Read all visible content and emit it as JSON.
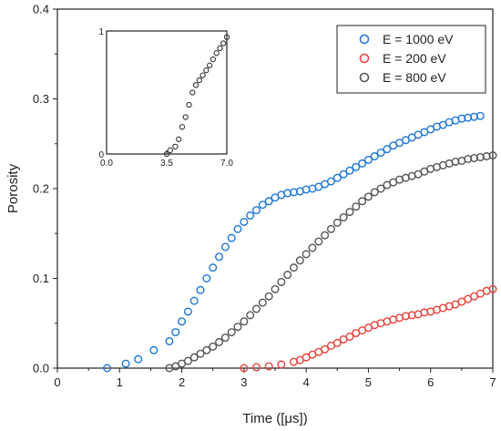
{
  "chart_data": [
    {
      "type": "scatter",
      "xlabel": "Time ([μs])",
      "ylabel": "Porosity",
      "xlim": [
        0,
        7
      ],
      "ylim": [
        0,
        0.4
      ],
      "x_ticks": [
        "0",
        "1",
        "2",
        "3",
        "4",
        "5",
        "6",
        "7"
      ],
      "y_ticks": [
        "0.0",
        "0.1",
        "0.2",
        "0.3",
        "0.4"
      ],
      "grid": false,
      "legend_position": "top-right",
      "series": [
        {
          "name": "E = 1000 eV",
          "color": "#1f77d4",
          "x": [
            0.8,
            1.1,
            1.3,
            1.55,
            1.8,
            1.9,
            2.0,
            2.1,
            2.2,
            2.3,
            2.4,
            2.5,
            2.6,
            2.7,
            2.8,
            2.9,
            3.0,
            3.1,
            3.2,
            3.3,
            3.4,
            3.5,
            3.6,
            3.7,
            3.8,
            3.9,
            4.0,
            4.1,
            4.2,
            4.3,
            4.4,
            4.5,
            4.6,
            4.7,
            4.8,
            4.9,
            5.0,
            5.1,
            5.2,
            5.3,
            5.4,
            5.5,
            5.6,
            5.7,
            5.8,
            5.9,
            6.0,
            6.1,
            6.2,
            6.3,
            6.4,
            6.5,
            6.6,
            6.7,
            6.8
          ],
          "y": [
            0.0,
            0.005,
            0.01,
            0.02,
            0.03,
            0.04,
            0.052,
            0.063,
            0.075,
            0.087,
            0.1,
            0.112,
            0.124,
            0.135,
            0.145,
            0.155,
            0.163,
            0.17,
            0.176,
            0.182,
            0.186,
            0.19,
            0.193,
            0.195,
            0.196,
            0.197,
            0.199,
            0.2,
            0.202,
            0.205,
            0.208,
            0.212,
            0.216,
            0.22,
            0.224,
            0.228,
            0.232,
            0.236,
            0.24,
            0.244,
            0.248,
            0.251,
            0.254,
            0.257,
            0.26,
            0.263,
            0.266,
            0.269,
            0.271,
            0.274,
            0.276,
            0.278,
            0.279,
            0.28,
            0.281
          ]
        },
        {
          "name": "E = 200 eV",
          "color": "#e8413c",
          "x": [
            3.0,
            3.2,
            3.4,
            3.6,
            3.8,
            3.9,
            4.0,
            4.1,
            4.2,
            4.3,
            4.4,
            4.5,
            4.6,
            4.7,
            4.8,
            4.9,
            5.0,
            5.1,
            5.2,
            5.3,
            5.4,
            5.5,
            5.6,
            5.7,
            5.8,
            5.9,
            6.0,
            6.1,
            6.2,
            6.3,
            6.4,
            6.5,
            6.6,
            6.7,
            6.8,
            6.9,
            7.0
          ],
          "y": [
            0.0,
            0.001,
            0.002,
            0.004,
            0.007,
            0.009,
            0.012,
            0.015,
            0.018,
            0.021,
            0.025,
            0.028,
            0.032,
            0.035,
            0.039,
            0.042,
            0.045,
            0.048,
            0.05,
            0.052,
            0.054,
            0.056,
            0.058,
            0.059,
            0.06,
            0.062,
            0.063,
            0.065,
            0.067,
            0.069,
            0.071,
            0.074,
            0.077,
            0.08,
            0.083,
            0.086,
            0.088
          ]
        },
        {
          "name": "E = 800 eV",
          "color": "#555555",
          "x": [
            1.8,
            1.9,
            2.0,
            2.1,
            2.2,
            2.3,
            2.4,
            2.5,
            2.6,
            2.7,
            2.8,
            2.9,
            3.0,
            3.1,
            3.2,
            3.3,
            3.4,
            3.5,
            3.6,
            3.7,
            3.8,
            3.9,
            4.0,
            4.1,
            4.2,
            4.3,
            4.4,
            4.5,
            4.6,
            4.7,
            4.8,
            4.9,
            5.0,
            5.1,
            5.2,
            5.3,
            5.4,
            5.5,
            5.6,
            5.7,
            5.8,
            5.9,
            6.0,
            6.1,
            6.2,
            6.3,
            6.4,
            6.5,
            6.6,
            6.7,
            6.8,
            6.9,
            7.0
          ],
          "y": [
            0.0,
            0.002,
            0.005,
            0.008,
            0.012,
            0.016,
            0.02,
            0.024,
            0.029,
            0.034,
            0.04,
            0.046,
            0.052,
            0.059,
            0.066,
            0.073,
            0.08,
            0.088,
            0.096,
            0.104,
            0.112,
            0.12,
            0.127,
            0.134,
            0.141,
            0.148,
            0.155,
            0.162,
            0.168,
            0.174,
            0.18,
            0.186,
            0.191,
            0.196,
            0.2,
            0.204,
            0.207,
            0.21,
            0.212,
            0.214,
            0.216,
            0.219,
            0.222,
            0.224,
            0.226,
            0.228,
            0.23,
            0.231,
            0.233,
            0.234,
            0.235,
            0.236,
            0.237
          ]
        }
      ]
    },
    {
      "type": "scatter",
      "xlim": [
        0,
        7
      ],
      "ylim": [
        0,
        1
      ],
      "x_ticks": [
        "0.0",
        "3.5",
        "7.0"
      ],
      "y_ticks": [
        "0",
        "1"
      ],
      "series": [
        {
          "color": "#333333",
          "x": [
            3.5,
            3.7,
            4.0,
            4.2,
            4.4,
            4.6,
            4.8,
            5.0,
            5.2,
            5.4,
            5.6,
            5.8,
            6.0,
            6.2,
            6.4,
            6.6,
            6.8,
            7.0
          ],
          "y": [
            0.0,
            0.03,
            0.06,
            0.12,
            0.22,
            0.3,
            0.4,
            0.5,
            0.56,
            0.6,
            0.64,
            0.68,
            0.72,
            0.77,
            0.82,
            0.86,
            0.9,
            0.95
          ]
        }
      ]
    }
  ]
}
